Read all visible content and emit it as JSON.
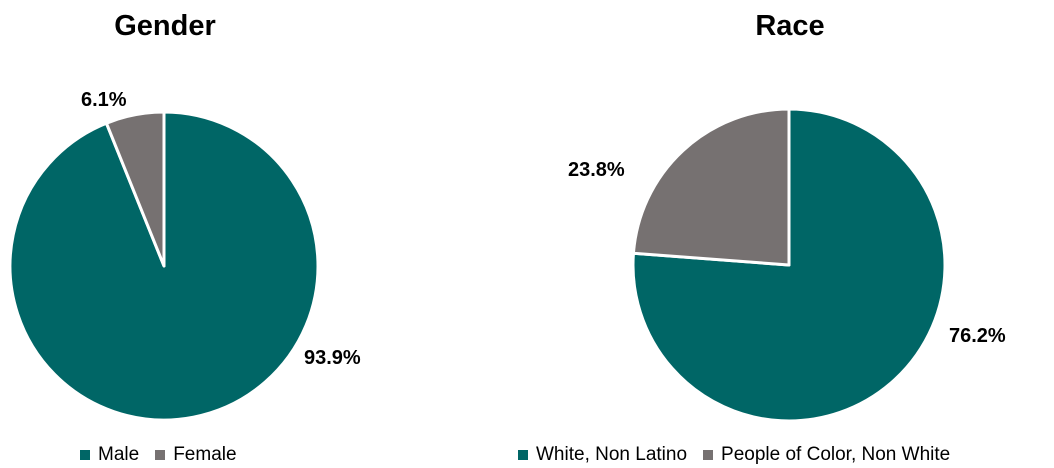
{
  "colors": {
    "teal": "#006666",
    "gray": "#767171"
  },
  "chart_data": [
    {
      "type": "pie",
      "title": "Gender",
      "categories": [
        "Male",
        "Female"
      ],
      "values": [
        93.9,
        6.1
      ],
      "labels": [
        "93.9%",
        "6.1%"
      ],
      "colors": [
        "#006666",
        "#767171"
      ],
      "legend_position": "bottom"
    },
    {
      "type": "pie",
      "title": "Race",
      "categories": [
        "White, Non Latino",
        "People of Color, Non White"
      ],
      "values": [
        76.2,
        23.8
      ],
      "labels": [
        "76.2%",
        "23.8%"
      ],
      "colors": [
        "#006666",
        "#767171"
      ],
      "legend_position": "bottom"
    }
  ]
}
